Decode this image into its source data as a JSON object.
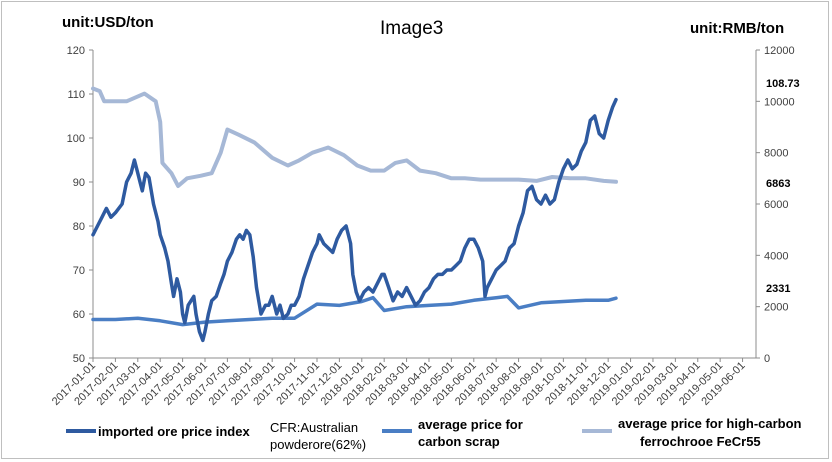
{
  "chart_data": {
    "type": "line",
    "title": "Image3",
    "unit_left": "unit:USD/ton",
    "unit_right": "unit:RMB/ton",
    "y_left": {
      "min": 50,
      "max": 120,
      "ticks": [
        "50",
        "60",
        "70",
        "80",
        "90",
        "100",
        "110",
        "120"
      ]
    },
    "y_right": {
      "min": 0,
      "max": 12000,
      "ticks": [
        "0",
        "2000",
        "4000",
        "6000",
        "8000",
        "10000",
        "12000"
      ]
    },
    "x_labels": [
      "2017-01-01",
      "2017-02-01",
      "2017-03-01",
      "2017-04-01",
      "2017-05-01",
      "2017-06-01",
      "2017-07-01",
      "2017-08-01",
      "2017-09-01",
      "2017-10-01",
      "2017-11-01",
      "2017-12-01",
      "2018-01-01",
      "2018-02-01",
      "2018-03-01",
      "2018-04-01",
      "2018-05-01",
      "2018-06-01",
      "2018-07-01",
      "2018-08-01",
      "2018-09-01",
      "2018-10-01",
      "2018-11-01",
      "2018-12-01",
      "2019-01-01",
      "2019-02-01",
      "2019-03-01",
      "2019-04-01",
      "2019-05-01",
      "2019-06-01"
    ],
    "end_labels": {
      "ore": "108.73",
      "ferrochrome": "6863",
      "scrap": "2331"
    },
    "series": [
      {
        "name": "imported ore price index",
        "name_extra": "CFR:Australian powderore(62%)",
        "axis": "left",
        "color": "#2e5aa0",
        "points": [
          [
            0,
            78
          ],
          [
            0.2,
            80
          ],
          [
            0.4,
            82
          ],
          [
            0.6,
            84
          ],
          [
            0.8,
            82
          ],
          [
            1.0,
            83
          ],
          [
            1.3,
            85
          ],
          [
            1.5,
            90
          ],
          [
            1.7,
            92
          ],
          [
            1.85,
            95
          ],
          [
            2.0,
            92
          ],
          [
            2.1,
            90
          ],
          [
            2.2,
            88
          ],
          [
            2.35,
            92
          ],
          [
            2.5,
            91
          ],
          [
            2.7,
            85
          ],
          [
            2.9,
            81
          ],
          [
            3.0,
            78
          ],
          [
            3.2,
            75
          ],
          [
            3.35,
            72
          ],
          [
            3.5,
            67
          ],
          [
            3.6,
            64
          ],
          [
            3.75,
            68
          ],
          [
            3.9,
            65
          ],
          [
            4.0,
            60
          ],
          [
            4.1,
            58
          ],
          [
            4.25,
            62
          ],
          [
            4.5,
            64
          ],
          [
            4.6,
            60
          ],
          [
            4.75,
            56
          ],
          [
            4.9,
            54
          ],
          [
            5.0,
            56
          ],
          [
            5.15,
            60
          ],
          [
            5.3,
            63
          ],
          [
            5.5,
            64
          ],
          [
            5.7,
            67
          ],
          [
            5.85,
            69
          ],
          [
            6.0,
            72
          ],
          [
            6.2,
            74
          ],
          [
            6.4,
            77
          ],
          [
            6.55,
            78
          ],
          [
            6.7,
            77
          ],
          [
            6.85,
            79
          ],
          [
            7.0,
            78
          ],
          [
            7.15,
            73
          ],
          [
            7.3,
            66
          ],
          [
            7.5,
            60
          ],
          [
            7.7,
            62
          ],
          [
            7.85,
            62
          ],
          [
            8.0,
            64
          ],
          [
            8.2,
            60
          ],
          [
            8.35,
            62
          ],
          [
            8.5,
            59
          ],
          [
            8.7,
            60
          ],
          [
            8.85,
            62
          ],
          [
            9.0,
            62
          ],
          [
            9.2,
            64
          ],
          [
            9.4,
            68
          ],
          [
            9.6,
            71
          ],
          [
            9.8,
            74
          ],
          [
            10.0,
            76
          ],
          [
            10.1,
            78
          ],
          [
            10.3,
            76
          ],
          [
            10.5,
            75
          ],
          [
            10.7,
            74
          ],
          [
            10.9,
            77
          ],
          [
            11.1,
            79
          ],
          [
            11.3,
            80
          ],
          [
            11.5,
            76
          ],
          [
            11.6,
            69
          ],
          [
            11.75,
            65
          ],
          [
            11.9,
            63
          ],
          [
            12.1,
            65
          ],
          [
            12.3,
            66
          ],
          [
            12.5,
            65
          ],
          [
            12.7,
            67
          ],
          [
            12.9,
            69
          ],
          [
            13.0,
            69
          ],
          [
            13.2,
            66
          ],
          [
            13.4,
            63
          ],
          [
            13.6,
            65
          ],
          [
            13.8,
            64
          ],
          [
            14.0,
            66
          ],
          [
            14.2,
            64
          ],
          [
            14.4,
            62
          ],
          [
            14.6,
            63
          ],
          [
            14.8,
            65
          ],
          [
            15.0,
            66
          ],
          [
            15.2,
            68
          ],
          [
            15.4,
            69
          ],
          [
            15.6,
            69
          ],
          [
            15.8,
            70
          ],
          [
            16.0,
            70
          ],
          [
            16.2,
            71
          ],
          [
            16.4,
            72
          ],
          [
            16.6,
            75
          ],
          [
            16.8,
            77
          ],
          [
            17.0,
            77
          ],
          [
            17.2,
            75
          ],
          [
            17.4,
            72
          ],
          [
            17.5,
            64
          ],
          [
            17.6,
            66
          ],
          [
            17.8,
            68
          ],
          [
            18.0,
            70
          ],
          [
            18.2,
            71
          ],
          [
            18.4,
            72
          ],
          [
            18.6,
            75
          ],
          [
            18.8,
            76
          ],
          [
            19.0,
            80
          ],
          [
            19.2,
            83
          ],
          [
            19.4,
            88
          ],
          [
            19.6,
            89
          ],
          [
            19.8,
            86
          ],
          [
            20.0,
            85
          ],
          [
            20.2,
            87
          ],
          [
            20.4,
            85
          ],
          [
            20.6,
            86
          ],
          [
            20.8,
            90
          ],
          [
            21.0,
            93
          ],
          [
            21.2,
            95
          ],
          [
            21.4,
            93
          ],
          [
            21.6,
            94
          ],
          [
            21.8,
            97
          ],
          [
            22.0,
            99
          ],
          [
            22.2,
            104
          ],
          [
            22.4,
            105
          ],
          [
            22.6,
            101
          ],
          [
            22.8,
            100
          ],
          [
            23.0,
            104
          ],
          [
            23.2,
            107
          ],
          [
            23.35,
            108.73
          ]
        ]
      },
      {
        "name": "average price for carbon scrap",
        "axis": "right",
        "color": "#4a7ec4",
        "points": [
          [
            0,
            1500
          ],
          [
            1,
            1500
          ],
          [
            2,
            1550
          ],
          [
            3,
            1450
          ],
          [
            4,
            1300
          ],
          [
            5,
            1400
          ],
          [
            6,
            1450
          ],
          [
            7,
            1500
          ],
          [
            8,
            1550
          ],
          [
            9,
            1550
          ],
          [
            10,
            2100
          ],
          [
            11,
            2050
          ],
          [
            12,
            2200
          ],
          [
            12.5,
            2350
          ],
          [
            13,
            1850
          ],
          [
            14,
            2000
          ],
          [
            15,
            2050
          ],
          [
            16,
            2100
          ],
          [
            17,
            2250
          ],
          [
            18,
            2350
          ],
          [
            18.5,
            2400
          ],
          [
            19,
            1950
          ],
          [
            20,
            2150
          ],
          [
            21,
            2200
          ],
          [
            22,
            2250
          ],
          [
            23,
            2250
          ],
          [
            23.35,
            2331
          ]
        ]
      },
      {
        "name": "average price for high-carbon ferrochrooe FeCr55",
        "axis": "right",
        "color": "#a6b8d6",
        "points": [
          [
            0,
            10500
          ],
          [
            0.3,
            10400
          ],
          [
            0.5,
            10000
          ],
          [
            1.5,
            10000
          ],
          [
            2.3,
            10300
          ],
          [
            2.8,
            10000
          ],
          [
            3.0,
            9200
          ],
          [
            3.1,
            7600
          ],
          [
            3.5,
            7200
          ],
          [
            3.8,
            6700
          ],
          [
            4.2,
            7000
          ],
          [
            4.8,
            7100
          ],
          [
            5.3,
            7200
          ],
          [
            5.7,
            8000
          ],
          [
            6.0,
            8900
          ],
          [
            6.5,
            8700
          ],
          [
            7.2,
            8400
          ],
          [
            8.0,
            7800
          ],
          [
            8.7,
            7500
          ],
          [
            9.2,
            7700
          ],
          [
            9.8,
            8000
          ],
          [
            10.5,
            8200
          ],
          [
            11.2,
            7900
          ],
          [
            11.8,
            7500
          ],
          [
            12.4,
            7300
          ],
          [
            13.0,
            7300
          ],
          [
            13.5,
            7600
          ],
          [
            14.0,
            7700
          ],
          [
            14.6,
            7300
          ],
          [
            15.3,
            7200
          ],
          [
            16.0,
            7000
          ],
          [
            16.6,
            7000
          ],
          [
            17.3,
            6950
          ],
          [
            18.0,
            6950
          ],
          [
            19.0,
            6950
          ],
          [
            19.8,
            6900
          ],
          [
            20.5,
            7050
          ],
          [
            21.3,
            7000
          ],
          [
            22.0,
            7000
          ],
          [
            22.8,
            6900
          ],
          [
            23.35,
            6863
          ]
        ]
      }
    ]
  }
}
